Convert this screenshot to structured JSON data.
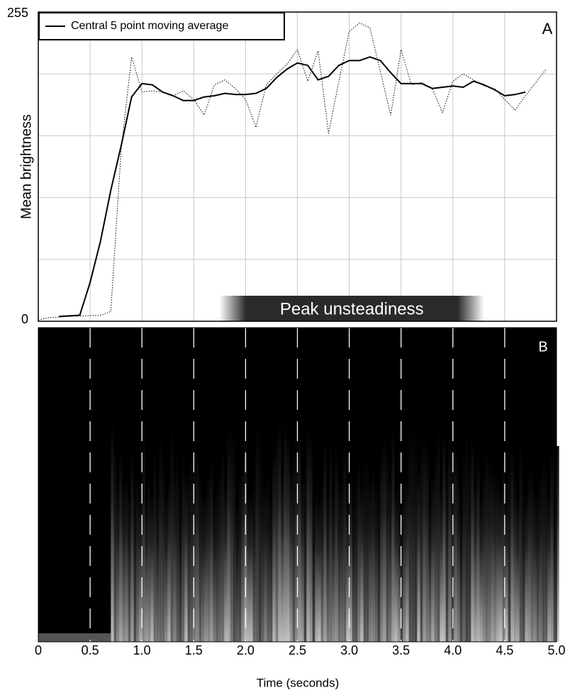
{
  "chart_data": {
    "type": "line",
    "ylabel": "Mean brightness",
    "xlabel": "Time (seconds)",
    "panel_labels": [
      "A",
      "B"
    ],
    "annotation": "Peak unsteadiness",
    "annotation_span": [
      1.75,
      4.3
    ],
    "spectrogram_onset": 0.7,
    "xlim": [
      0,
      5
    ],
    "ylim": [
      0,
      255
    ],
    "xticks": [
      0,
      0.5,
      {
        "value": 1,
        "label": "1.0"
      },
      1.5,
      {
        "value": 2,
        "label": "2.0"
      },
      2.5,
      {
        "value": 3,
        "label": "3.0"
      },
      3.5,
      {
        "value": 4,
        "label": "4.0"
      },
      4.5,
      {
        "value": 5,
        "label": "5.0"
      }
    ],
    "yticks": [
      0,
      255
    ],
    "ygrid": [
      51,
      102,
      153,
      204
    ],
    "grid": true,
    "legend": "upper left",
    "series": [
      {
        "name": "Central 5 point moving average",
        "color": "#000000",
        "style": "solid",
        "x": [
          0.2,
          0.4,
          0.5,
          0.6,
          0.7,
          0.8,
          0.9,
          1.0,
          1.1,
          1.2,
          1.3,
          1.4,
          1.5,
          1.6,
          1.7,
          1.8,
          1.9,
          2.0,
          2.1,
          2.2,
          2.3,
          2.4,
          2.5,
          2.6,
          2.7,
          2.8,
          2.9,
          3.0,
          3.1,
          3.2,
          3.3,
          3.4,
          3.5,
          3.6,
          3.7,
          3.8,
          3.9,
          4.0,
          4.1,
          4.2,
          4.3,
          4.4,
          4.5,
          4.6,
          4.7
        ],
        "values": [
          4,
          5,
          32,
          66,
          108,
          145,
          185,
          196,
          195,
          189,
          186,
          182,
          182,
          185,
          186,
          188,
          187,
          187,
          188,
          192,
          201,
          208,
          213,
          211,
          199,
          202,
          211,
          215,
          215,
          218,
          215,
          205,
          196,
          196,
          196,
          192,
          193,
          194,
          193,
          198,
          195,
          191,
          186,
          187,
          189
        ]
      },
      {
        "color": "#000000",
        "style": "dotted",
        "x": [
          0,
          0.1,
          0.3,
          0.6,
          0.7,
          0.8,
          0.85,
          0.9,
          1.0,
          1.1,
          1.2,
          1.3,
          1.4,
          1.5,
          1.6,
          1.7,
          1.8,
          1.9,
          2.0,
          2.1,
          2.2,
          2.3,
          2.4,
          2.5,
          2.6,
          2.7,
          2.8,
          2.9,
          3.0,
          3.1,
          3.2,
          3.3,
          3.4,
          3.5,
          3.6,
          3.7,
          3.8,
          3.9,
          4.0,
          4.1,
          4.2,
          4.3,
          4.4,
          4.5,
          4.6,
          4.7,
          4.9
        ],
        "values": [
          1,
          3,
          4,
          5,
          8,
          142,
          180,
          218,
          189,
          190,
          189,
          186,
          190,
          183,
          170,
          195,
          199,
          192,
          183,
          160,
          195,
          204,
          212,
          224,
          198,
          223,
          155,
          198,
          239,
          246,
          242,
          206,
          170,
          224,
          195,
          197,
          192,
          172,
          198,
          204,
          199,
          194,
          192,
          183,
          174,
          186,
          208
        ]
      }
    ]
  }
}
